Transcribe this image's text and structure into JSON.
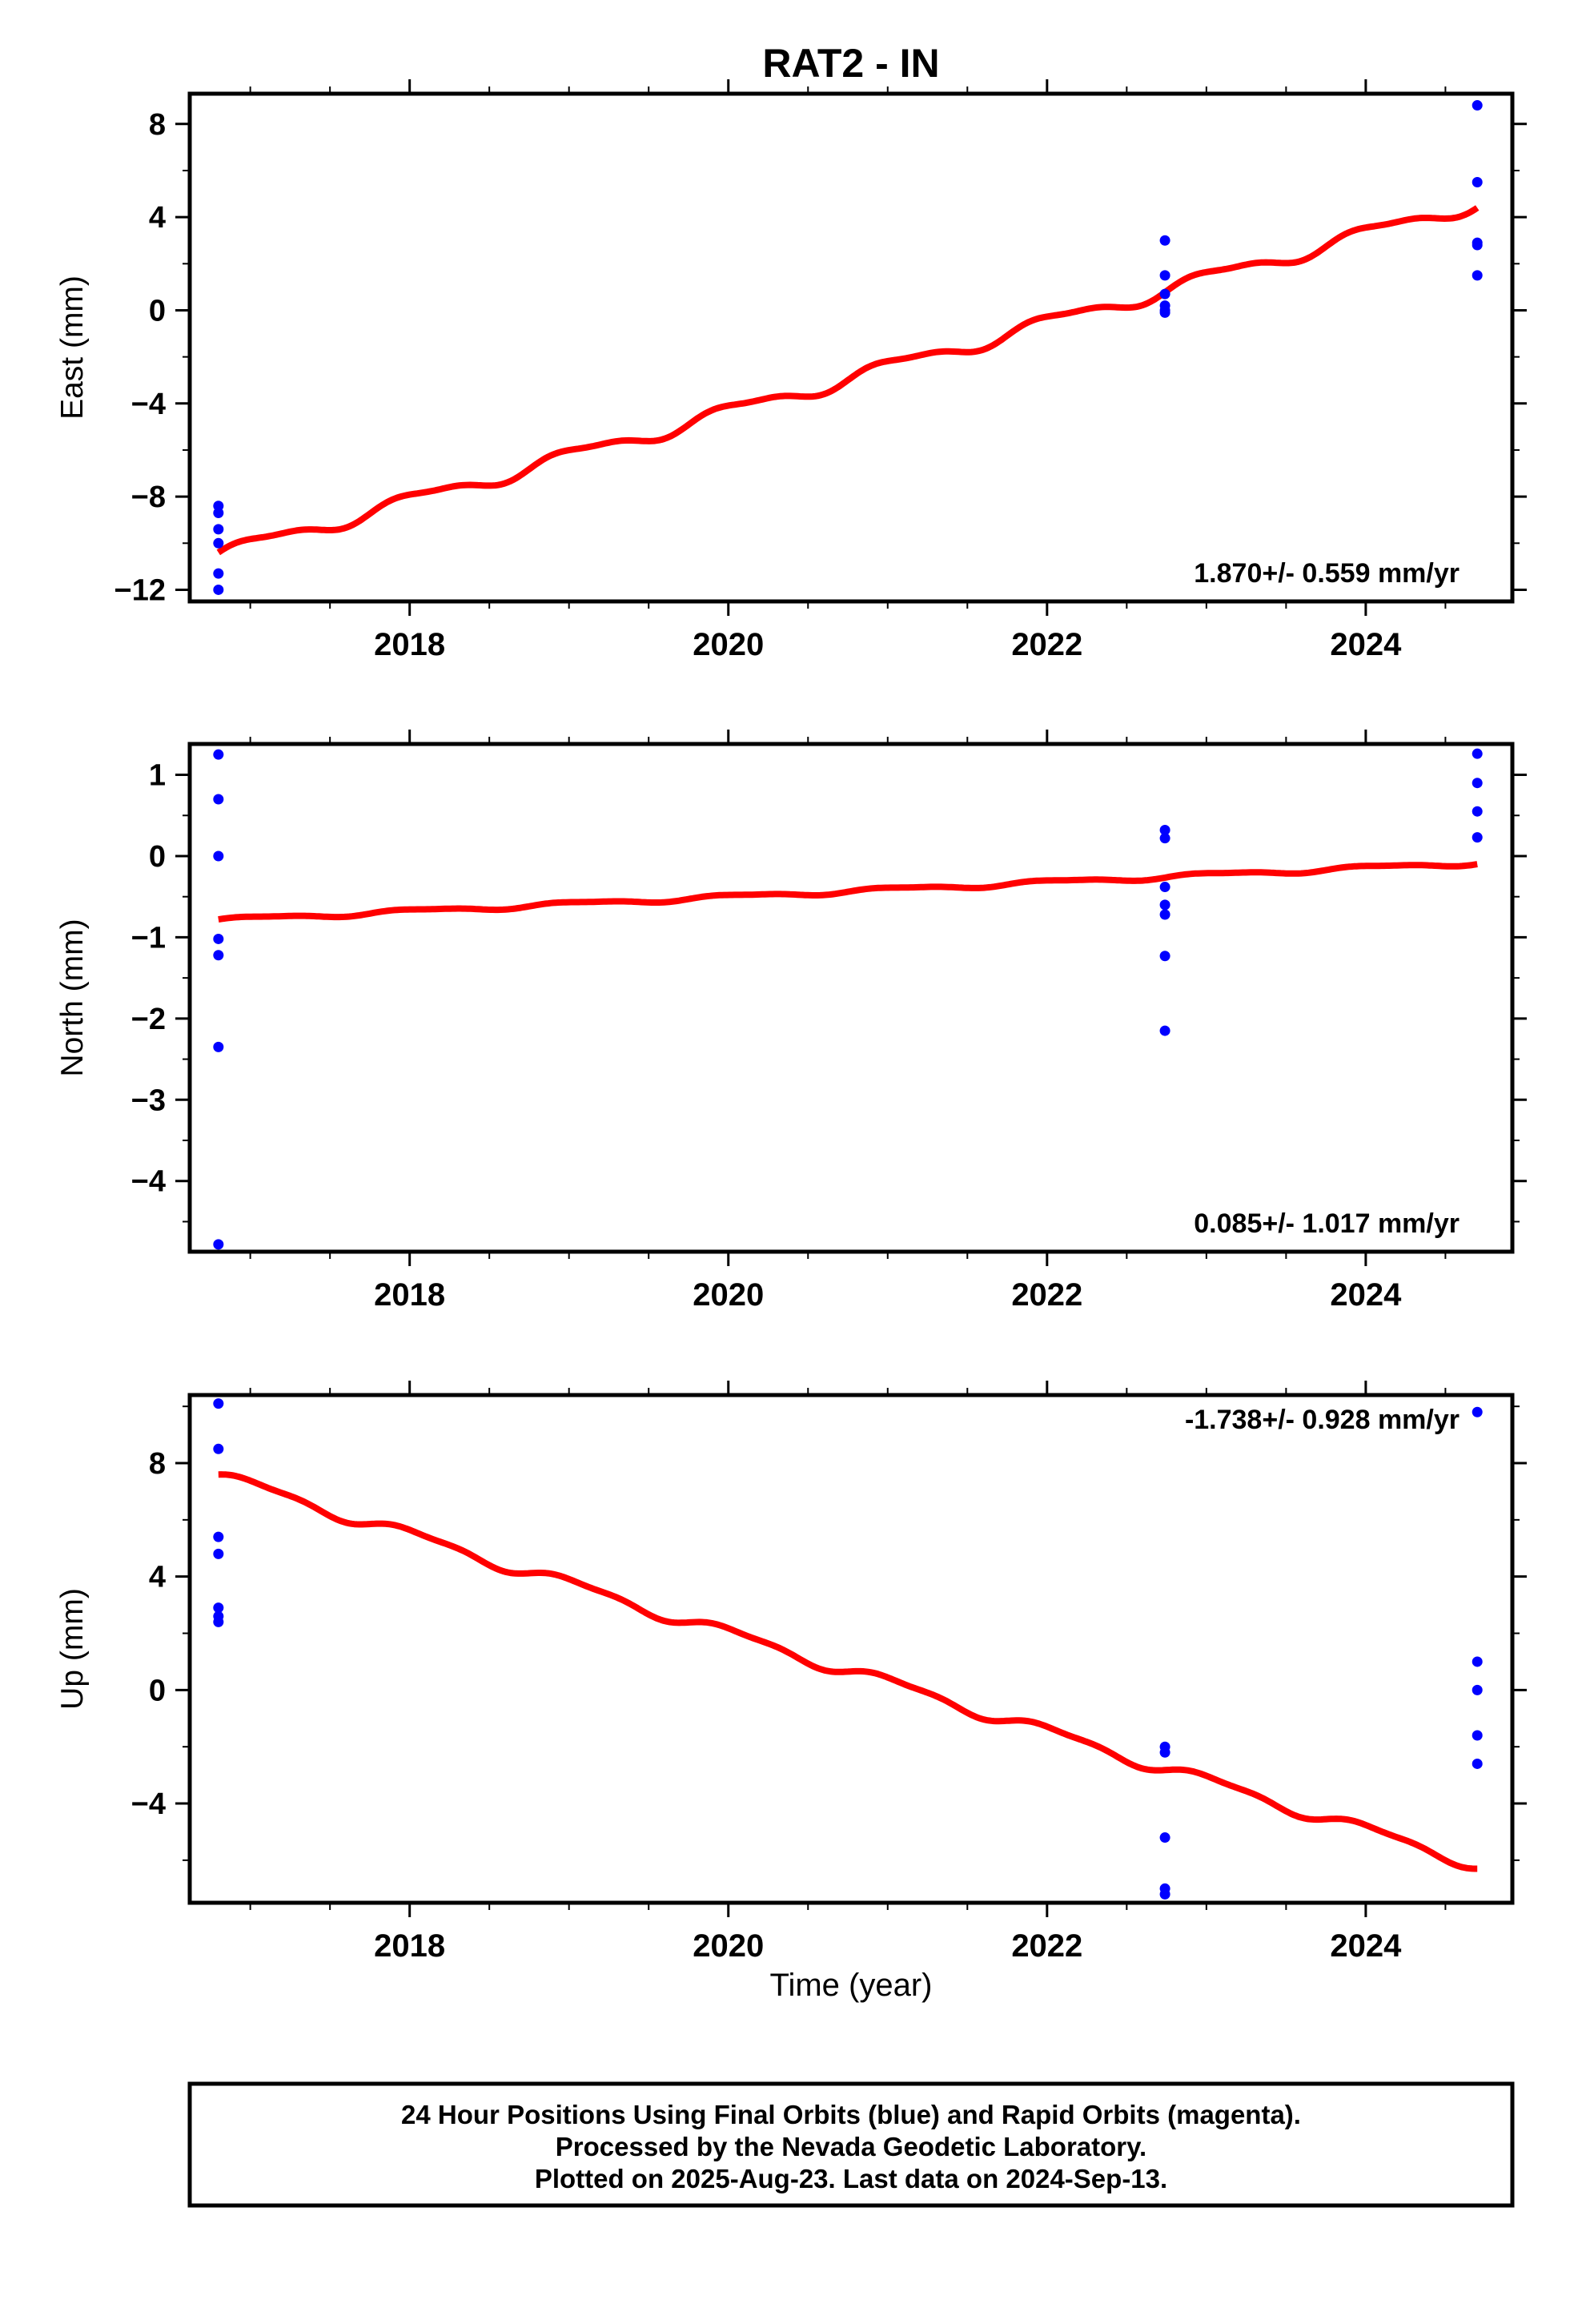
{
  "title": "RAT2 - IN",
  "xlabel": "Time (year)",
  "footer": {
    "line1": "24 Hour Positions Using Final Orbits (blue) and Rapid Orbits (magenta).",
    "line2": "Processed by the Nevada Geodetic Laboratory.",
    "line3": "Plotted on 2025-Aug-23. Last data on 2024-Sep-13."
  },
  "colors": {
    "data_points": "#0000ff",
    "fit_line": "#ff0000",
    "frame": "#000000"
  },
  "chart_data": [
    {
      "type": "scatter",
      "ylabel": "East (mm)",
      "rate_label": "1.870+/- 0.559 mm/yr",
      "rate_position": "bottom-right",
      "xlim": [
        2016.62,
        2024.92
      ],
      "ylim": [
        -12.5,
        9.3
      ],
      "xticks": [
        2018,
        2020,
        2022,
        2024
      ],
      "xtick_labels": [
        "2018",
        "2020",
        "2022",
        "2024"
      ],
      "yticks": [
        -12,
        -8,
        -4,
        0,
        4,
        8
      ],
      "ytick_labels": [
        "−12",
        "−8",
        "−4",
        "0",
        "4",
        "8"
      ],
      "grid": false,
      "points": [
        [
          2016.8,
          -8.4
        ],
        [
          2016.8,
          -8.7
        ],
        [
          2016.8,
          -9.4
        ],
        [
          2016.8,
          -10.0
        ],
        [
          2016.8,
          -11.3
        ],
        [
          2016.8,
          -12.0
        ],
        [
          2022.74,
          3.0
        ],
        [
          2022.74,
          1.5
        ],
        [
          2022.74,
          0.7
        ],
        [
          2022.74,
          0.2
        ],
        [
          2022.74,
          0.0
        ],
        [
          2022.74,
          -0.1
        ],
        [
          2024.7,
          8.8
        ],
        [
          2024.7,
          5.5
        ],
        [
          2024.7,
          2.9
        ],
        [
          2024.7,
          2.8
        ],
        [
          2024.7,
          1.5
        ]
      ],
      "fit": {
        "y_start": -10.4,
        "y_end": 4.4,
        "seasonal_amplitude": 0.3
      }
    },
    {
      "type": "scatter",
      "ylabel": "North (mm)",
      "rate_label": "0.085+/- 1.017 mm/yr",
      "rate_position": "bottom-right",
      "xlim": [
        2016.62,
        2024.92
      ],
      "ylim": [
        -4.87,
        1.38
      ],
      "xticks": [
        2018,
        2020,
        2022,
        2024
      ],
      "xtick_labels": [
        "2018",
        "2020",
        "2022",
        "2024"
      ],
      "yticks": [
        -4,
        -3,
        -2,
        -1,
        0,
        1
      ],
      "ytick_labels": [
        "−4",
        "−3",
        "−2",
        "−1",
        "0",
        "1"
      ],
      "grid": false,
      "points": [
        [
          2016.8,
          1.25
        ],
        [
          2016.8,
          0.7
        ],
        [
          2016.8,
          0.0
        ],
        [
          2016.8,
          -1.02
        ],
        [
          2016.8,
          -1.22
        ],
        [
          2016.8,
          -2.35
        ],
        [
          2016.8,
          -4.78
        ],
        [
          2022.74,
          0.32
        ],
        [
          2022.74,
          0.22
        ],
        [
          2022.74,
          -0.38
        ],
        [
          2022.74,
          -0.6
        ],
        [
          2022.74,
          -0.72
        ],
        [
          2022.74,
          -1.23
        ],
        [
          2022.74,
          -2.15
        ],
        [
          2024.7,
          1.26
        ],
        [
          2024.7,
          0.9
        ],
        [
          2024.7,
          0.55
        ],
        [
          2024.7,
          0.23
        ]
      ],
      "fit": {
        "y_start": -0.78,
        "y_end": -0.1,
        "seasonal_amplitude": 0.025
      }
    },
    {
      "type": "scatter",
      "ylabel": "Up (mm)",
      "rate_label": "-1.738+/- 0.928 mm/yr",
      "rate_position": "top-right",
      "xlim": [
        2016.62,
        2024.92
      ],
      "ylim": [
        -7.5,
        10.4
      ],
      "xticks": [
        2018,
        2020,
        2022,
        2024
      ],
      "xtick_labels": [
        "2018",
        "2020",
        "2022",
        "2024"
      ],
      "yticks": [
        -4,
        0,
        4,
        8
      ],
      "ytick_labels": [
        "−4",
        "0",
        "4",
        "8"
      ],
      "grid": false,
      "points": [
        [
          2016.8,
          10.1
        ],
        [
          2016.8,
          8.5
        ],
        [
          2016.8,
          5.4
        ],
        [
          2016.8,
          4.8
        ],
        [
          2016.8,
          2.9
        ],
        [
          2016.8,
          2.6
        ],
        [
          2016.8,
          2.4
        ],
        [
          2022.74,
          -2.0
        ],
        [
          2022.74,
          -2.2
        ],
        [
          2022.74,
          -5.2
        ],
        [
          2022.74,
          -7.0
        ],
        [
          2022.74,
          -7.2
        ],
        [
          2024.7,
          9.8
        ],
        [
          2024.7,
          1.0
        ],
        [
          2024.7,
          0.0
        ],
        [
          2024.7,
          -1.6
        ],
        [
          2024.7,
          -2.6
        ]
      ],
      "fit": {
        "y_start": 7.6,
        "y_end": -6.3,
        "seasonal_amplitude": 0.2
      }
    }
  ]
}
